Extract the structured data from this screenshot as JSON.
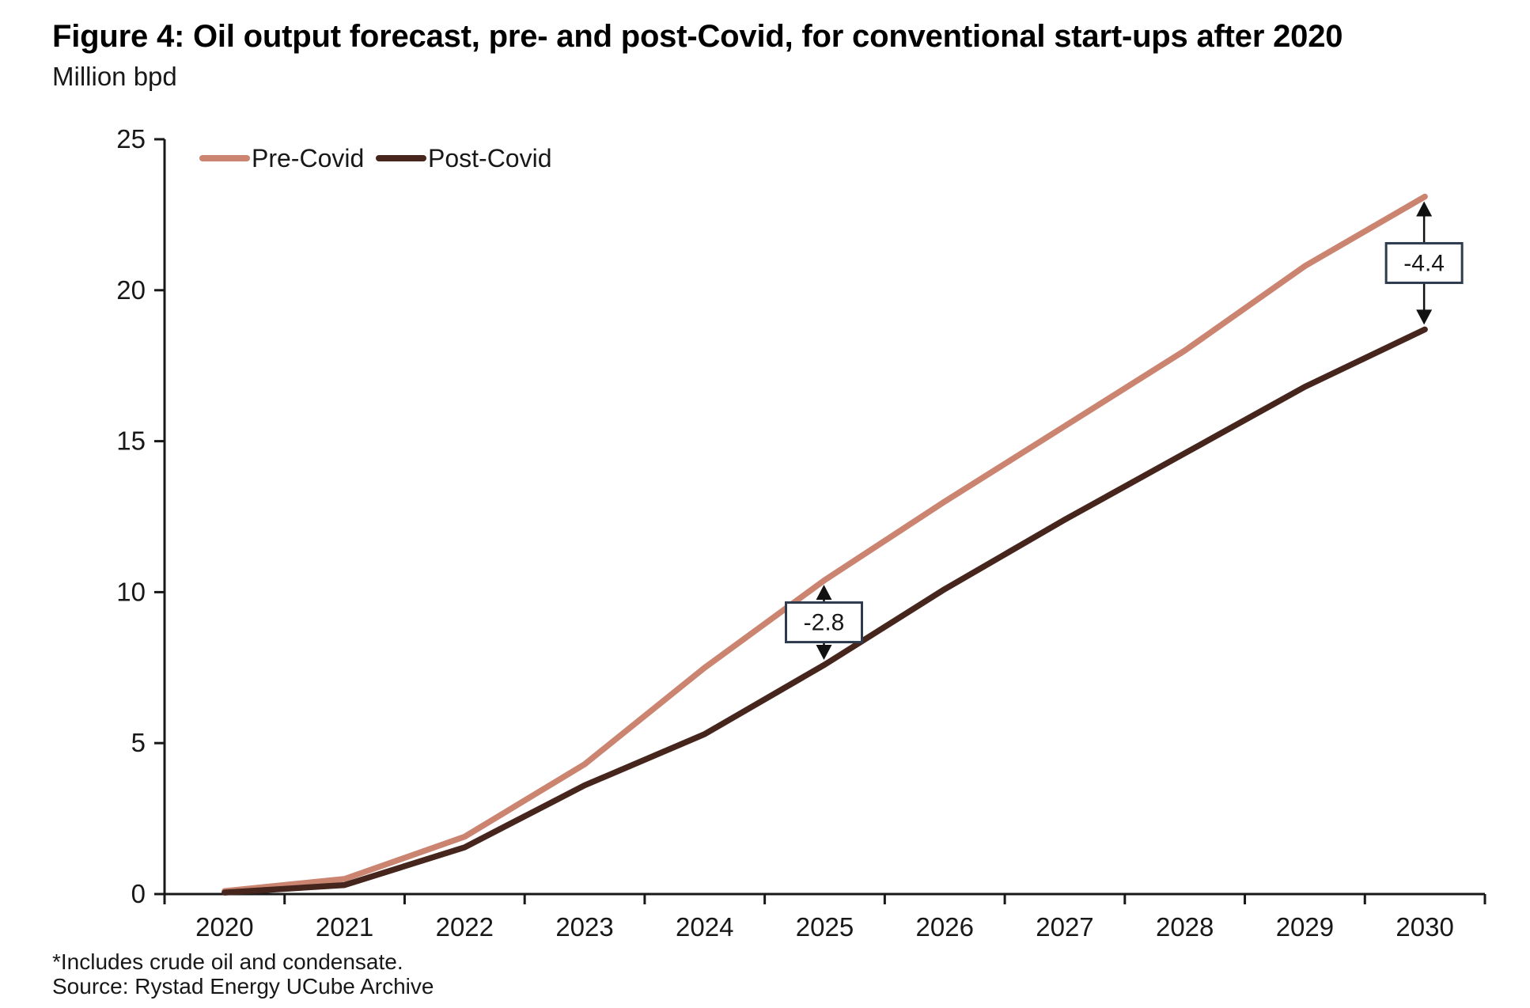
{
  "figure": {
    "title": "Figure 4: Oil output forecast, pre- and post-Covid, for conventional start-ups after 2020",
    "subtitle": "Million bpd",
    "footnote": "*Includes crude oil and condensate.",
    "source": "Source: Rystad Energy UCube Archive"
  },
  "chart_data": {
    "type": "line",
    "title": "Figure 4: Oil output forecast, pre- and post-Covid, for conventional start-ups after 2020",
    "ylabel": "Million bpd",
    "xlabel": "",
    "categories": [
      "2020",
      "2021",
      "2022",
      "2023",
      "2024",
      "2025",
      "2026",
      "2027",
      "2028",
      "2029",
      "2030"
    ],
    "series": [
      {
        "name": "Pre-Covid",
        "color": "#CB8470",
        "values": [
          0.1,
          0.5,
          1.9,
          4.3,
          7.5,
          10.4,
          13.0,
          15.5,
          18.0,
          20.8,
          23.1
        ]
      },
      {
        "name": "Post-Covid",
        "color": "#45251C",
        "values": [
          0.05,
          0.3,
          1.55,
          3.6,
          5.3,
          7.6,
          10.1,
          12.4,
          14.6,
          16.8,
          18.7
        ]
      }
    ],
    "ylim": [
      0,
      25
    ],
    "ytick_values": [
      0,
      5,
      10,
      15,
      20,
      25
    ],
    "grid": false,
    "legend_position": "top-left",
    "annotations": [
      {
        "label": "-2.8",
        "category": "2025"
      },
      {
        "label": "-4.4",
        "category": "2030"
      }
    ],
    "annotation_box_border": "#2E3B4E",
    "axis_color": "#181818"
  }
}
